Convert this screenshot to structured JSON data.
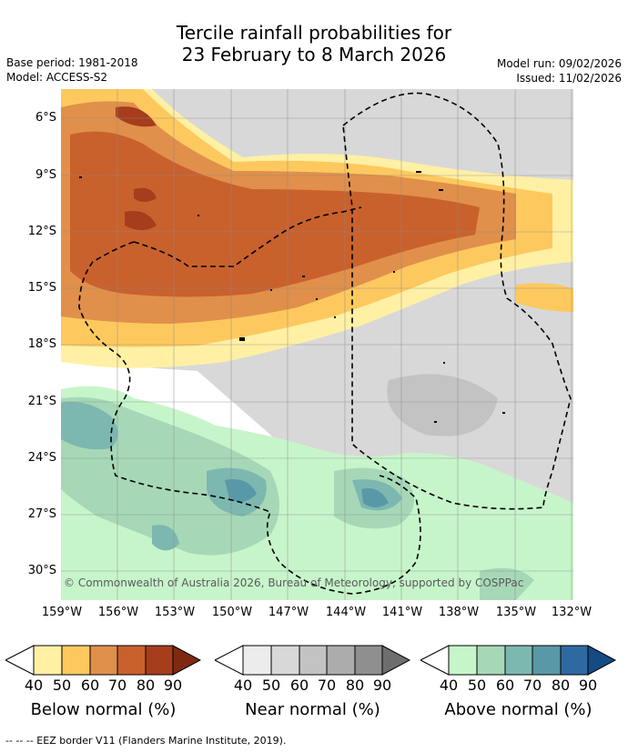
{
  "header": {
    "title_line1": "Tercile rainfall probabilities for",
    "title_line2": "23 February to 8 March 2026",
    "base_period": "Base period: 1981-2018",
    "model": "Model: ACCESS-S2",
    "model_run": "Model run: 09/02/2026",
    "issued": "Issued: 11/02/2026"
  },
  "map": {
    "lat_labels": [
      "6°S",
      "9°S",
      "12°S",
      "15°S",
      "18°S",
      "21°S",
      "24°S",
      "27°S",
      "30°S"
    ],
    "lon_labels": [
      "159°W",
      "156°W",
      "153°W",
      "150°W",
      "147°W",
      "144°W",
      "141°W",
      "138°W",
      "135°W",
      "132°W"
    ],
    "copyright": "© Commonwealth of Australia 2026, Bureau of Meteorology, supported by COSPPac",
    "colors": {
      "below": [
        "#fff0a4",
        "#fdc95f",
        "#e0904a",
        "#c9612d",
        "#a63d1c",
        "#7f2a10"
      ],
      "near": [
        "#ececec",
        "#d8d8d8",
        "#c3c3c3",
        "#acacac",
        "#8f8f8f",
        "#6e6e6e"
      ],
      "above": [
        "#c7f5ca",
        "#a6d8b7",
        "#7cb8b0",
        "#5998a6",
        "#2e6aa1",
        "#134b85"
      ]
    }
  },
  "legends": [
    {
      "ticks": [
        "40",
        "50",
        "60",
        "70",
        "80",
        "90"
      ],
      "label": "Below normal (%)"
    },
    {
      "ticks": [
        "40",
        "50",
        "60",
        "70",
        "80",
        "90"
      ],
      "label": "Near normal (%)"
    },
    {
      "ticks": [
        "40",
        "50",
        "60",
        "70",
        "80",
        "90"
      ],
      "label": "Above normal (%)"
    }
  ],
  "footer": {
    "eez_note": "--  --  -- EEZ border V11 (Flanders Marine Institute, 2019)."
  }
}
